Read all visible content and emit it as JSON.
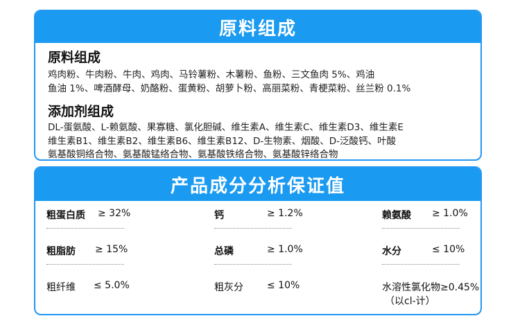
{
  "ingredients": {
    "banner": "原料组成",
    "raw_title": "原料组成",
    "raw_lines": [
      "鸡肉粉、牛肉粉、牛肉、鸡肉、马铃薯粉、木薯粉、鱼粉、三文鱼肉 5%、鸡油",
      "鱼油 1%、啤酒酵母、奶酪粉、蛋黄粉、胡萝卜粉、高丽菜粉、青梗菜粉、丝兰粉 0.1%"
    ],
    "additive_title": "添加剂组成",
    "additive_lines": [
      "DL-蛋氨酸、L-赖氨酸、果寡糖、氯化胆碱、维生素A、维生素C、维生素D3、维生素E",
      "维生素B1、维生素B2、维生素B6、维生素B12、D-生物素、烟酸、D-泛酸钙、叶酸",
      "氨基酸铜络合物、氨基酸锰络合物、氨基酸铁络合物、氨基酸锌络合物"
    ]
  },
  "analysis": {
    "banner": "产品成分分析保证值",
    "items": [
      {
        "label": "粗蛋白质",
        "value": "≥ 32%"
      },
      {
        "label": "钙",
        "value": "≥ 1.2%"
      },
      {
        "label": "赖氨酸",
        "value": "≥ 1.0%"
      },
      {
        "label": "粗脂肪",
        "value": "≥ 15%"
      },
      {
        "label": "总磷",
        "value": "≥ 1.0%"
      },
      {
        "label": "水分",
        "value": "≤ 10%"
      },
      {
        "label": "粗纤维",
        "value": "≤ 5.0%"
      },
      {
        "label": "粗灰分",
        "value": "≤ 10%"
      },
      {
        "label": "水溶性氯化物≥0.45%",
        "value": "（以cl-计）"
      }
    ]
  },
  "colors": {
    "accent": "#1a9af0",
    "border": "#2196f3"
  }
}
